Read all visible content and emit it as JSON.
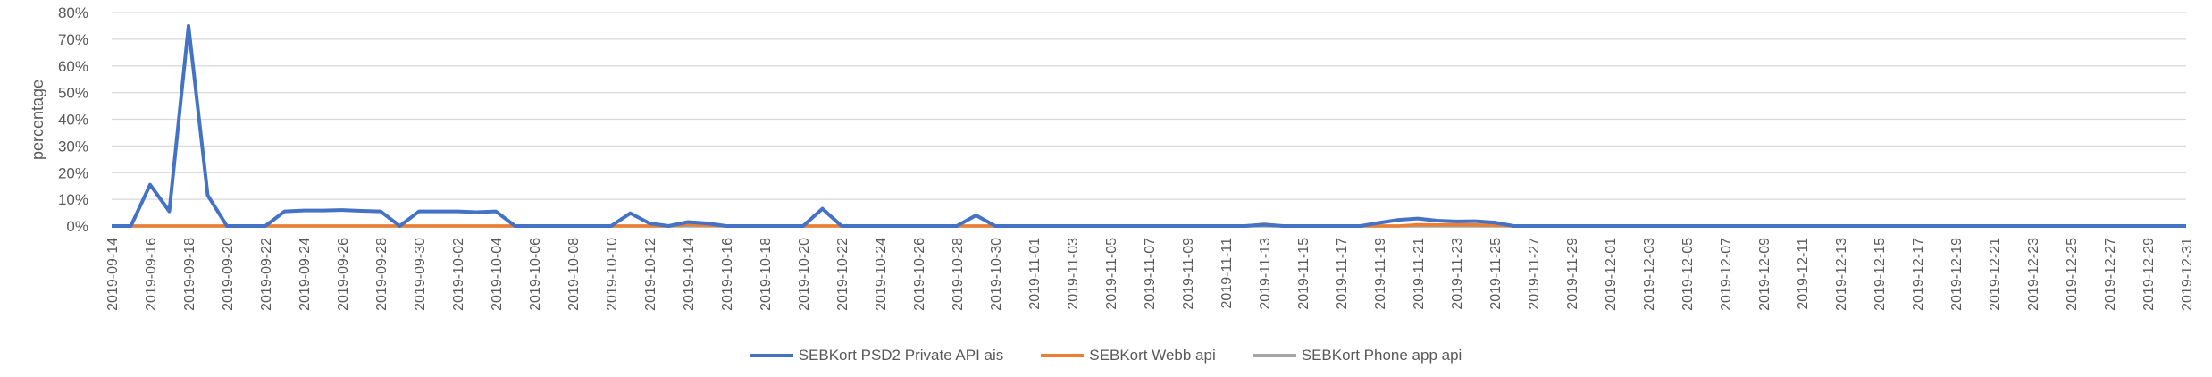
{
  "chart_data": {
    "type": "line",
    "ylabel": "percentage",
    "ylim": [
      0,
      80
    ],
    "y_ticks": [
      "0%",
      "10%",
      "20%",
      "30%",
      "40%",
      "50%",
      "60%",
      "70%",
      "80%"
    ],
    "x_start": "2019-09-14",
    "x_end": "2019-12-31",
    "x_tick_labels": [
      "2019-09-14",
      "2019-09-16",
      "2019-09-18",
      "2019-09-20",
      "2019-09-22",
      "2019-09-24",
      "2019-09-26",
      "2019-09-28",
      "2019-09-30",
      "2019-10-02",
      "2019-10-04",
      "2019-10-06",
      "2019-10-08",
      "2019-10-10",
      "2019-10-12",
      "2019-10-14",
      "2019-10-16",
      "2019-10-18",
      "2019-10-20",
      "2019-10-22",
      "2019-10-24",
      "2019-10-26",
      "2019-10-28",
      "2019-10-30",
      "2019-11-01",
      "2019-11-03",
      "2019-11-05",
      "2019-11-07",
      "2019-11-09",
      "2019-11-11",
      "2019-11-13",
      "2019-11-15",
      "2019-11-17",
      "2019-11-19",
      "2019-11-21",
      "2019-11-23",
      "2019-11-25",
      "2019-11-27",
      "2019-11-29",
      "2019-12-01",
      "2019-12-03",
      "2019-12-05",
      "2019-12-07",
      "2019-12-09",
      "2019-12-11",
      "2019-12-13",
      "2019-12-15",
      "2019-12-17",
      "2019-12-19",
      "2019-12-21",
      "2019-12-23",
      "2019-12-25",
      "2019-12-27",
      "2019-12-29",
      "2019-12-31"
    ],
    "grid": true,
    "legend_position": "bottom",
    "series": [
      {
        "name": "SEBKort PSD2 Private API ais",
        "color": "#4472C4",
        "points": [
          {
            "x": "2019-09-14",
            "y": 0
          },
          {
            "x": "2019-09-15",
            "y": 0
          },
          {
            "x": "2019-09-16",
            "y": 15.5
          },
          {
            "x": "2019-09-17",
            "y": 5.5
          },
          {
            "x": "2019-09-18",
            "y": 75
          },
          {
            "x": "2019-09-19",
            "y": 11.5
          },
          {
            "x": "2019-09-20",
            "y": 0
          },
          {
            "x": "2019-09-21",
            "y": 0
          },
          {
            "x": "2019-09-22",
            "y": 0
          },
          {
            "x": "2019-09-23",
            "y": 5.5
          },
          {
            "x": "2019-09-24",
            "y": 5.8
          },
          {
            "x": "2019-09-25",
            "y": 5.8
          },
          {
            "x": "2019-09-26",
            "y": 6
          },
          {
            "x": "2019-09-27",
            "y": 5.7
          },
          {
            "x": "2019-09-28",
            "y": 5.5
          },
          {
            "x": "2019-09-29",
            "y": 0
          },
          {
            "x": "2019-09-30",
            "y": 5.5
          },
          {
            "x": "2019-10-01",
            "y": 5.5
          },
          {
            "x": "2019-10-02",
            "y": 5.5
          },
          {
            "x": "2019-10-03",
            "y": 5.2
          },
          {
            "x": "2019-10-04",
            "y": 5.5
          },
          {
            "x": "2019-10-05",
            "y": 0
          },
          {
            "x": "2019-10-10",
            "y": 0
          },
          {
            "x": "2019-10-11",
            "y": 4.8
          },
          {
            "x": "2019-10-12",
            "y": 1
          },
          {
            "x": "2019-10-13",
            "y": 0
          },
          {
            "x": "2019-10-14",
            "y": 1.5
          },
          {
            "x": "2019-10-15",
            "y": 1
          },
          {
            "x": "2019-10-16",
            "y": 0
          },
          {
            "x": "2019-10-20",
            "y": 0
          },
          {
            "x": "2019-10-21",
            "y": 6.5
          },
          {
            "x": "2019-10-22",
            "y": 0
          },
          {
            "x": "2019-10-28",
            "y": 0
          },
          {
            "x": "2019-10-29",
            "y": 4
          },
          {
            "x": "2019-10-30",
            "y": 0
          },
          {
            "x": "2019-11-12",
            "y": 0
          },
          {
            "x": "2019-11-13",
            "y": 0.5
          },
          {
            "x": "2019-11-14",
            "y": 0
          },
          {
            "x": "2019-11-18",
            "y": 0
          },
          {
            "x": "2019-11-19",
            "y": 1.2
          },
          {
            "x": "2019-11-20",
            "y": 2.3
          },
          {
            "x": "2019-11-21",
            "y": 2.8
          },
          {
            "x": "2019-11-22",
            "y": 2
          },
          {
            "x": "2019-11-23",
            "y": 1.7
          },
          {
            "x": "2019-11-24",
            "y": 1.8
          },
          {
            "x": "2019-11-25",
            "y": 1.3
          },
          {
            "x": "2019-11-26",
            "y": 0
          },
          {
            "x": "2019-12-31",
            "y": 0
          }
        ]
      },
      {
        "name": "SEBKort Webb api",
        "color": "#ED7D31",
        "points": [
          {
            "x": "2019-09-14",
            "y": 0
          },
          {
            "x": "2019-10-13",
            "y": 0
          },
          {
            "x": "2019-10-14",
            "y": 0.6
          },
          {
            "x": "2019-10-15",
            "y": 0.3
          },
          {
            "x": "2019-10-16",
            "y": 0
          },
          {
            "x": "2019-11-12",
            "y": 0
          },
          {
            "x": "2019-11-13",
            "y": 0.7
          },
          {
            "x": "2019-11-14",
            "y": 0
          },
          {
            "x": "2019-11-20",
            "y": 0
          },
          {
            "x": "2019-11-21",
            "y": 0.5
          },
          {
            "x": "2019-11-22",
            "y": 0.4
          },
          {
            "x": "2019-11-23",
            "y": 0.5
          },
          {
            "x": "2019-11-24",
            "y": 0.4
          },
          {
            "x": "2019-11-25",
            "y": 0.3
          },
          {
            "x": "2019-11-26",
            "y": 0
          },
          {
            "x": "2019-12-31",
            "y": 0
          }
        ]
      },
      {
        "name": "SEBKort Phone app api",
        "color": "#A5A5A5",
        "points": [
          {
            "x": "2019-09-14",
            "y": 0
          },
          {
            "x": "2019-12-31",
            "y": 0
          }
        ]
      }
    ]
  }
}
